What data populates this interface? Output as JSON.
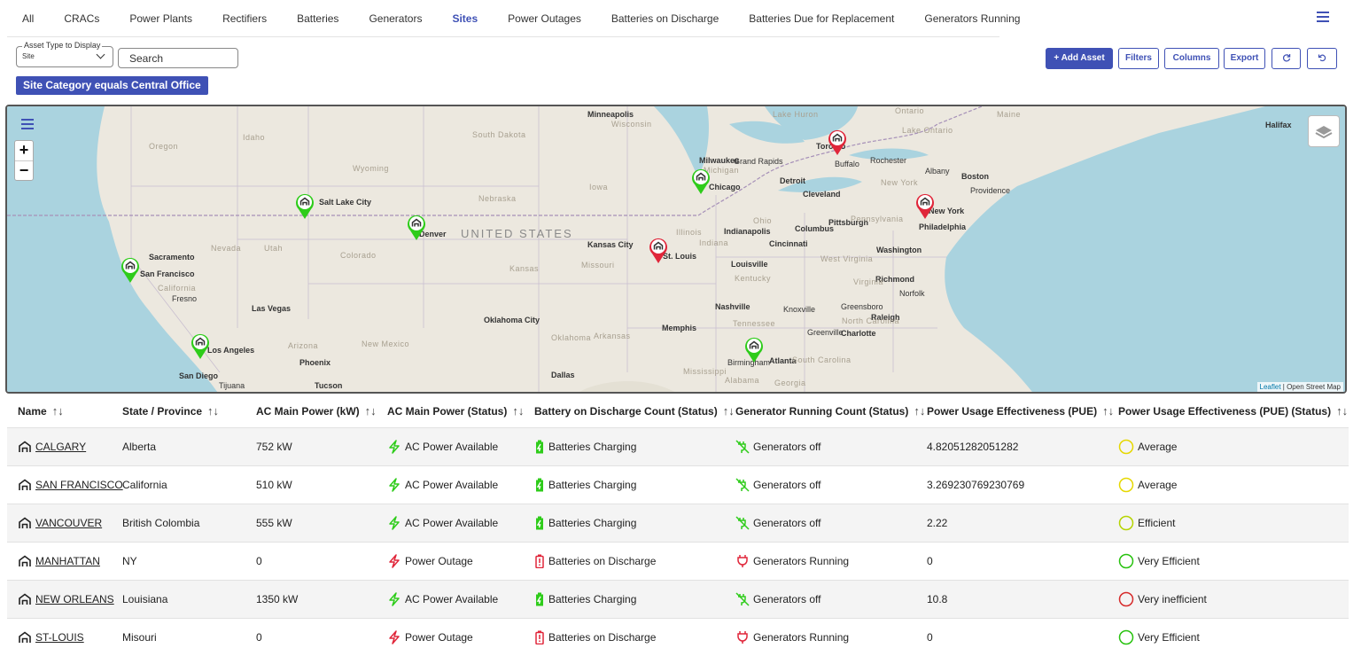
{
  "tabs": [
    "All",
    "CRACs",
    "Power Plants",
    "Rectifiers",
    "Batteries",
    "Generators",
    "Sites",
    "Power Outages",
    "Batteries on Discharge",
    "Batteries Due for Replacement",
    "Generators Running"
  ],
  "active_tab": "Sites",
  "toolbar": {
    "asset_type_label": "Asset Type to Display",
    "asset_type_value": "Site",
    "search_placeholder": "Search",
    "filter_chip": "Site Category equals Central Office",
    "add_asset": "+ Add Asset",
    "filters": "Filters",
    "columns": "Columns",
    "export": "Export"
  },
  "map": {
    "country_label": "UNITED STATES",
    "attribution_leaflet": "Leaflet",
    "attribution_sep": " | ",
    "attribution_osm": "Open Street Map",
    "cities": [
      "Minneapolis",
      "Milwaukee",
      "Grand Rapids",
      "Detroit",
      "Toronto",
      "Buffalo",
      "Rochester",
      "Albany",
      "Boston",
      "Providence",
      "Halifax",
      "Cleveland",
      "Pittsburgh",
      "New York",
      "Philadelphia",
      "Columbus",
      "Indianapolis",
      "Cincinnati",
      "Washington",
      "Chicago",
      "Kansas City",
      "St. Louis",
      "Louisville",
      "Richmond",
      "Norfolk",
      "Nashville",
      "Knoxville",
      "Greensboro",
      "Raleigh",
      "Charlotte",
      "Greenville",
      "Memphis",
      "Atlanta",
      "Birmingham",
      "Oklahoma City",
      "Dallas",
      "Denver",
      "Salt Lake City",
      "Sacramento",
      "San Francisco",
      "Fresno",
      "Las Vegas",
      "Los Angeles",
      "San Diego",
      "Tijuana",
      "Phoenix",
      "Tucson"
    ],
    "regions": [
      "Oregon",
      "Idaho",
      "Wyoming",
      "Nevada",
      "Utah",
      "Colorado",
      "California",
      "Arizona",
      "New Mexico",
      "South Dakota",
      "Nebraska",
      "Iowa",
      "Kansas",
      "Missouri",
      "Oklahoma",
      "Arkansas",
      "Illinois",
      "Indiana",
      "Ohio",
      "Kentucky",
      "Tennessee",
      "Mississippi",
      "Alabama",
      "Georgia",
      "South Carolina",
      "North Carolina",
      "Virginia",
      "West Virginia",
      "Pennsylvania",
      "New York",
      "Michigan",
      "Wisconsin",
      "Maine",
      "Ontario",
      "Lake Huron",
      "Lake Ontario"
    ],
    "markers": [
      {
        "site": "Salt Lake City",
        "status": "green"
      },
      {
        "site": "Denver",
        "status": "green"
      },
      {
        "site": "San Francisco",
        "status": "green"
      },
      {
        "site": "Los Angeles",
        "status": "green"
      },
      {
        "site": "Chicago",
        "status": "green"
      },
      {
        "site": "Atlanta",
        "status": "green"
      },
      {
        "site": "Toronto",
        "status": "red"
      },
      {
        "site": "New York",
        "status": "red"
      },
      {
        "site": "St. Louis",
        "status": "red"
      }
    ]
  },
  "table": {
    "columns": [
      "Name",
      "State / Province",
      "AC Main Power  (kW)",
      "AC Main Power (Status)",
      "Battery on Discharge Count (Status)",
      "Generator Running Count (Status)",
      "Power Usage Effectiveness (PUE)",
      "Power Usage Effectiveness (PUE) (Status)"
    ],
    "sort_glyph": "↑↓",
    "rows": [
      {
        "name": "CALGARY",
        "state": "Alberta",
        "ac_kw": "752 kW",
        "ac_status": "AC Power Available",
        "battery": "Batteries Charging",
        "generator": "Generators off",
        "pue": "4.82051282051282",
        "pue_status": "Average",
        "ac_ok": true,
        "pue_color": "#e6d800"
      },
      {
        "name": "SAN FRANCISCO",
        "state": "California",
        "ac_kw": "510 kW",
        "ac_status": "AC Power Available",
        "battery": "Batteries Charging",
        "generator": "Generators off",
        "pue": "3.269230769230769",
        "pue_status": "Average",
        "ac_ok": true,
        "pue_color": "#e6d800"
      },
      {
        "name": "VANCOUVER",
        "state": "British Colombia",
        "ac_kw": "555 kW",
        "ac_status": "AC Power Available",
        "battery": "Batteries Charging",
        "generator": "Generators off",
        "pue": "2.22",
        "pue_status": "Efficient",
        "ac_ok": true,
        "pue_color": "#b5d400"
      },
      {
        "name": "MANHATTAN",
        "state": "NY",
        "ac_kw": "0",
        "ac_status": "Power Outage",
        "battery": "Batteries on Discharge",
        "generator": "Generators Running",
        "pue": "0",
        "pue_status": "Very Efficient",
        "ac_ok": false,
        "pue_color": "#27c20e"
      },
      {
        "name": "NEW ORLEANS",
        "state": "Louisiana",
        "ac_kw": "1350 kW",
        "ac_status": "AC Power Available",
        "battery": "Batteries Charging",
        "generator": "Generators off",
        "pue": "10.8",
        "pue_status": "Very inefficient",
        "ac_ok": true,
        "pue_color": "#d62a2a"
      },
      {
        "name": "ST-LOUIS",
        "state": "Misouri",
        "ac_kw": "0",
        "ac_status": "Power Outage",
        "battery": "Batteries on Discharge",
        "generator": "Generators Running",
        "pue": "0",
        "pue_status": "Very Efficient",
        "ac_ok": false,
        "pue_color": "#27c20e"
      }
    ]
  },
  "colors": {
    "accent": "#3f51b5",
    "ok": "#2ecc1a",
    "alert": "#e0263a"
  }
}
